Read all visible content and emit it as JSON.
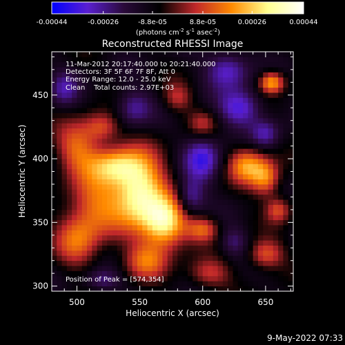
{
  "chart_data": {
    "type": "heatmap",
    "title": "Reconstructed RHESSI Image",
    "xlabel": "Heliocentric X (arcsec)",
    "ylabel": "Heliocentric Y (arcsec)",
    "xlim": [
      480,
      672
    ],
    "ylim": [
      296,
      484
    ],
    "x_ticks": [
      500,
      550,
      600,
      650
    ],
    "y_ticks": [
      300,
      350,
      400,
      450
    ],
    "colorbar": {
      "range": [
        -0.00044,
        0.00044
      ],
      "tick_values": [
        -0.00044,
        -0.00026,
        -8.8e-05,
        8.8e-05,
        0.00026,
        0.00044
      ],
      "tick_labels": [
        "-0.00044",
        "-0.00026",
        "-8.8e-05",
        "8.8e-05",
        "0.00026",
        "0.00044"
      ],
      "unit_prefix": "(photons cm",
      "unit_exp1": "-2",
      "unit_mid1": " s",
      "unit_exp2": "-1",
      "unit_mid2": " asec",
      "unit_exp3": "-2",
      "unit_suffix": ")",
      "colormap": [
        "#0000ff",
        "#5a1fd0",
        "#2a0a3a",
        "#000000",
        "#c0282a",
        "#ff8a00",
        "#ffff90",
        "#ffffff"
      ]
    },
    "annotations": {
      "time_range": "11-Mar-2012 20:17:40.000 to 20:21:40.000",
      "detectors": "Detectors: 3F 5F 6F 7F 8F, Att 0",
      "energy": "Energy Range: 12.0 - 25.0 keV",
      "method": "Clean    Total counts: 2.97E+03",
      "peak": "Position of Peak = [574,354]"
    },
    "sources": [
      {
        "x": 550,
        "y": 375,
        "amp": 1.0,
        "sx": 14,
        "sy": 20
      },
      {
        "x": 570,
        "y": 350,
        "amp": 0.95,
        "sx": 12,
        "sy": 14
      },
      {
        "x": 515,
        "y": 365,
        "amp": 0.55,
        "sx": 16,
        "sy": 20
      },
      {
        "x": 500,
        "y": 335,
        "amp": 0.45,
        "sx": 12,
        "sy": 14
      },
      {
        "x": 530,
        "y": 395,
        "amp": 0.6,
        "sx": 14,
        "sy": 10
      },
      {
        "x": 500,
        "y": 410,
        "amp": 0.5,
        "sx": 12,
        "sy": 14
      },
      {
        "x": 520,
        "y": 425,
        "amp": 0.45,
        "sx": 10,
        "sy": 8
      },
      {
        "x": 655,
        "y": 460,
        "amp": 0.75,
        "sx": 7,
        "sy": 6
      },
      {
        "x": 635,
        "y": 395,
        "amp": 0.65,
        "sx": 10,
        "sy": 10
      },
      {
        "x": 650,
        "y": 385,
        "amp": 0.6,
        "sx": 8,
        "sy": 10
      },
      {
        "x": 600,
        "y": 345,
        "amp": 0.5,
        "sx": 9,
        "sy": 7
      },
      {
        "x": 555,
        "y": 320,
        "amp": 0.5,
        "sx": 12,
        "sy": 10
      },
      {
        "x": 605,
        "y": 310,
        "amp": 0.4,
        "sx": 12,
        "sy": 8
      },
      {
        "x": 650,
        "y": 325,
        "amp": 0.5,
        "sx": 10,
        "sy": 8
      },
      {
        "x": 660,
        "y": 360,
        "amp": 0.45,
        "sx": 7,
        "sy": 7
      },
      {
        "x": 580,
        "y": 448,
        "amp": 0.35,
        "sx": 8,
        "sy": 8
      },
      {
        "x": 600,
        "y": 428,
        "amp": 0.3,
        "sx": 8,
        "sy": 7
      },
      {
        "x": 620,
        "y": 470,
        "amp": -0.5,
        "sx": 12,
        "sy": 10
      },
      {
        "x": 630,
        "y": 440,
        "amp": -0.55,
        "sx": 12,
        "sy": 10
      },
      {
        "x": 600,
        "y": 400,
        "amp": -0.55,
        "sx": 10,
        "sy": 12
      },
      {
        "x": 545,
        "y": 440,
        "amp": -0.4,
        "sx": 10,
        "sy": 10
      },
      {
        "x": 590,
        "y": 370,
        "amp": -0.45,
        "sx": 8,
        "sy": 10
      },
      {
        "x": 520,
        "y": 305,
        "amp": -0.35,
        "sx": 10,
        "sy": 6
      },
      {
        "x": 650,
        "y": 420,
        "amp": -0.4,
        "sx": 8,
        "sy": 8
      },
      {
        "x": 490,
        "y": 455,
        "amp": -0.35,
        "sx": 8,
        "sy": 10
      },
      {
        "x": 625,
        "y": 335,
        "amp": -0.3,
        "sx": 8,
        "sy": 8
      }
    ]
  },
  "footer": {
    "timestamp": "9-May-2022 07:33"
  }
}
